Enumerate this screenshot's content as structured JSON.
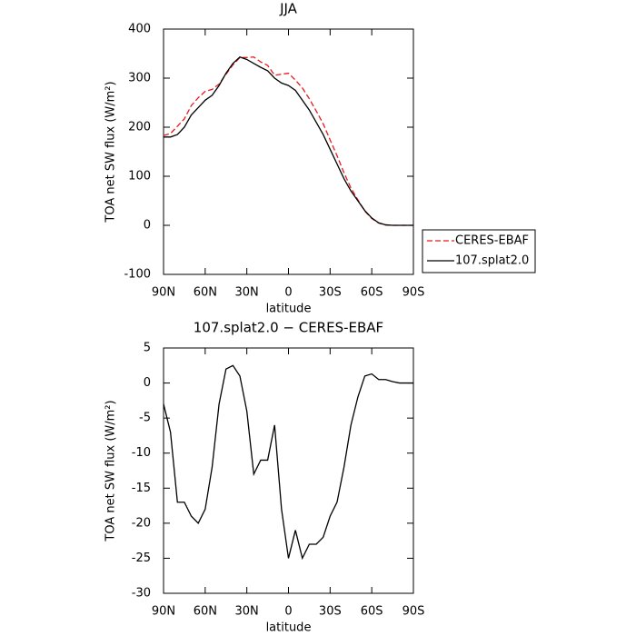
{
  "chart_data": [
    {
      "type": "line",
      "title": "JJA",
      "xlabel": "latitude",
      "ylabel": "TOA net SW flux (W/m²)",
      "x": [
        90,
        85,
        80,
        75,
        70,
        65,
        60,
        55,
        50,
        45,
        40,
        35,
        30,
        25,
        20,
        15,
        10,
        5,
        0,
        -5,
        -10,
        -15,
        -20,
        -25,
        -30,
        -35,
        -40,
        -45,
        -50,
        -55,
        -60,
        -65,
        -70,
        -75,
        -80,
        -85,
        -90
      ],
      "series": [
        {
          "name": "CERES-EBAF",
          "color": "#e8191c",
          "dash": "dashed",
          "values": [
            183,
            187,
            202,
            217,
            244,
            260,
            273,
            277,
            288,
            308,
            327,
            342,
            342,
            343,
            333,
            326,
            306,
            308,
            310,
            296,
            280,
            258,
            233,
            207,
            174,
            142,
            107,
            76,
            52,
            29,
            14,
            4.5,
            0.5,
            0,
            0,
            0,
            0
          ]
        },
        {
          "name": "107.splat2.0",
          "color": "#000000",
          "dash": "solid",
          "values": [
            180,
            180,
            185,
            200,
            225,
            240,
            255,
            265,
            285,
            310,
            330,
            343,
            338,
            330,
            322,
            315,
            300,
            290,
            285,
            275,
            255,
            235,
            210,
            185,
            155,
            125,
            95,
            70,
            50,
            30,
            15,
            5,
            1,
            0,
            0,
            0,
            0
          ]
        }
      ],
      "xlim": [
        90,
        -90
      ],
      "xticks": [
        {
          "value": 90,
          "label": "90N"
        },
        {
          "value": 60,
          "label": "60N"
        },
        {
          "value": 30,
          "label": "30N"
        },
        0,
        {
          "value": -30,
          "label": "30S"
        },
        {
          "value": -60,
          "label": "60S"
        },
        {
          "value": -90,
          "label": "90S"
        }
      ],
      "ylim": [
        -100,
        400
      ],
      "yticks": [
        -100,
        0,
        100,
        200,
        300,
        400
      ],
      "legend": "outside-right"
    },
    {
      "type": "line",
      "title": "107.splat2.0 − CERES-EBAF",
      "xlabel": "latitude",
      "ylabel": "TOA net SW flux (W/m²)",
      "x": [
        90,
        85,
        80,
        75,
        70,
        65,
        60,
        55,
        50,
        45,
        40,
        35,
        30,
        25,
        20,
        15,
        10,
        5,
        0,
        -5,
        -10,
        -15,
        -20,
        -25,
        -30,
        -35,
        -40,
        -45,
        -50,
        -55,
        -60,
        -65,
        -70,
        -75,
        -80,
        -85,
        -90
      ],
      "series": [
        {
          "color": "#000000",
          "dash": "solid",
          "values": [
            -3,
            -7,
            -17,
            -17,
            -19,
            -20,
            -18,
            -12,
            -3,
            2,
            2.5,
            1,
            -4,
            -13,
            -11,
            -11,
            -6,
            -18,
            -25,
            -21,
            -25,
            -23,
            -23,
            -22,
            -19,
            -17,
            -12,
            -6,
            -2,
            1,
            1.3,
            0.5,
            0.5,
            0.2,
            0,
            0,
            0
          ]
        }
      ],
      "xlim": [
        90,
        -90
      ],
      "xticks": [
        {
          "value": 90,
          "label": "90N"
        },
        {
          "value": 60,
          "label": "60N"
        },
        {
          "value": 30,
          "label": "30N"
        },
        0,
        {
          "value": -30,
          "label": "30S"
        },
        {
          "value": -60,
          "label": "60S"
        },
        {
          "value": -90,
          "label": "90S"
        }
      ],
      "ylim": [
        -30,
        5
      ],
      "yticks": [
        -30,
        -25,
        -20,
        -15,
        -10,
        -5,
        0,
        5
      ]
    }
  ]
}
